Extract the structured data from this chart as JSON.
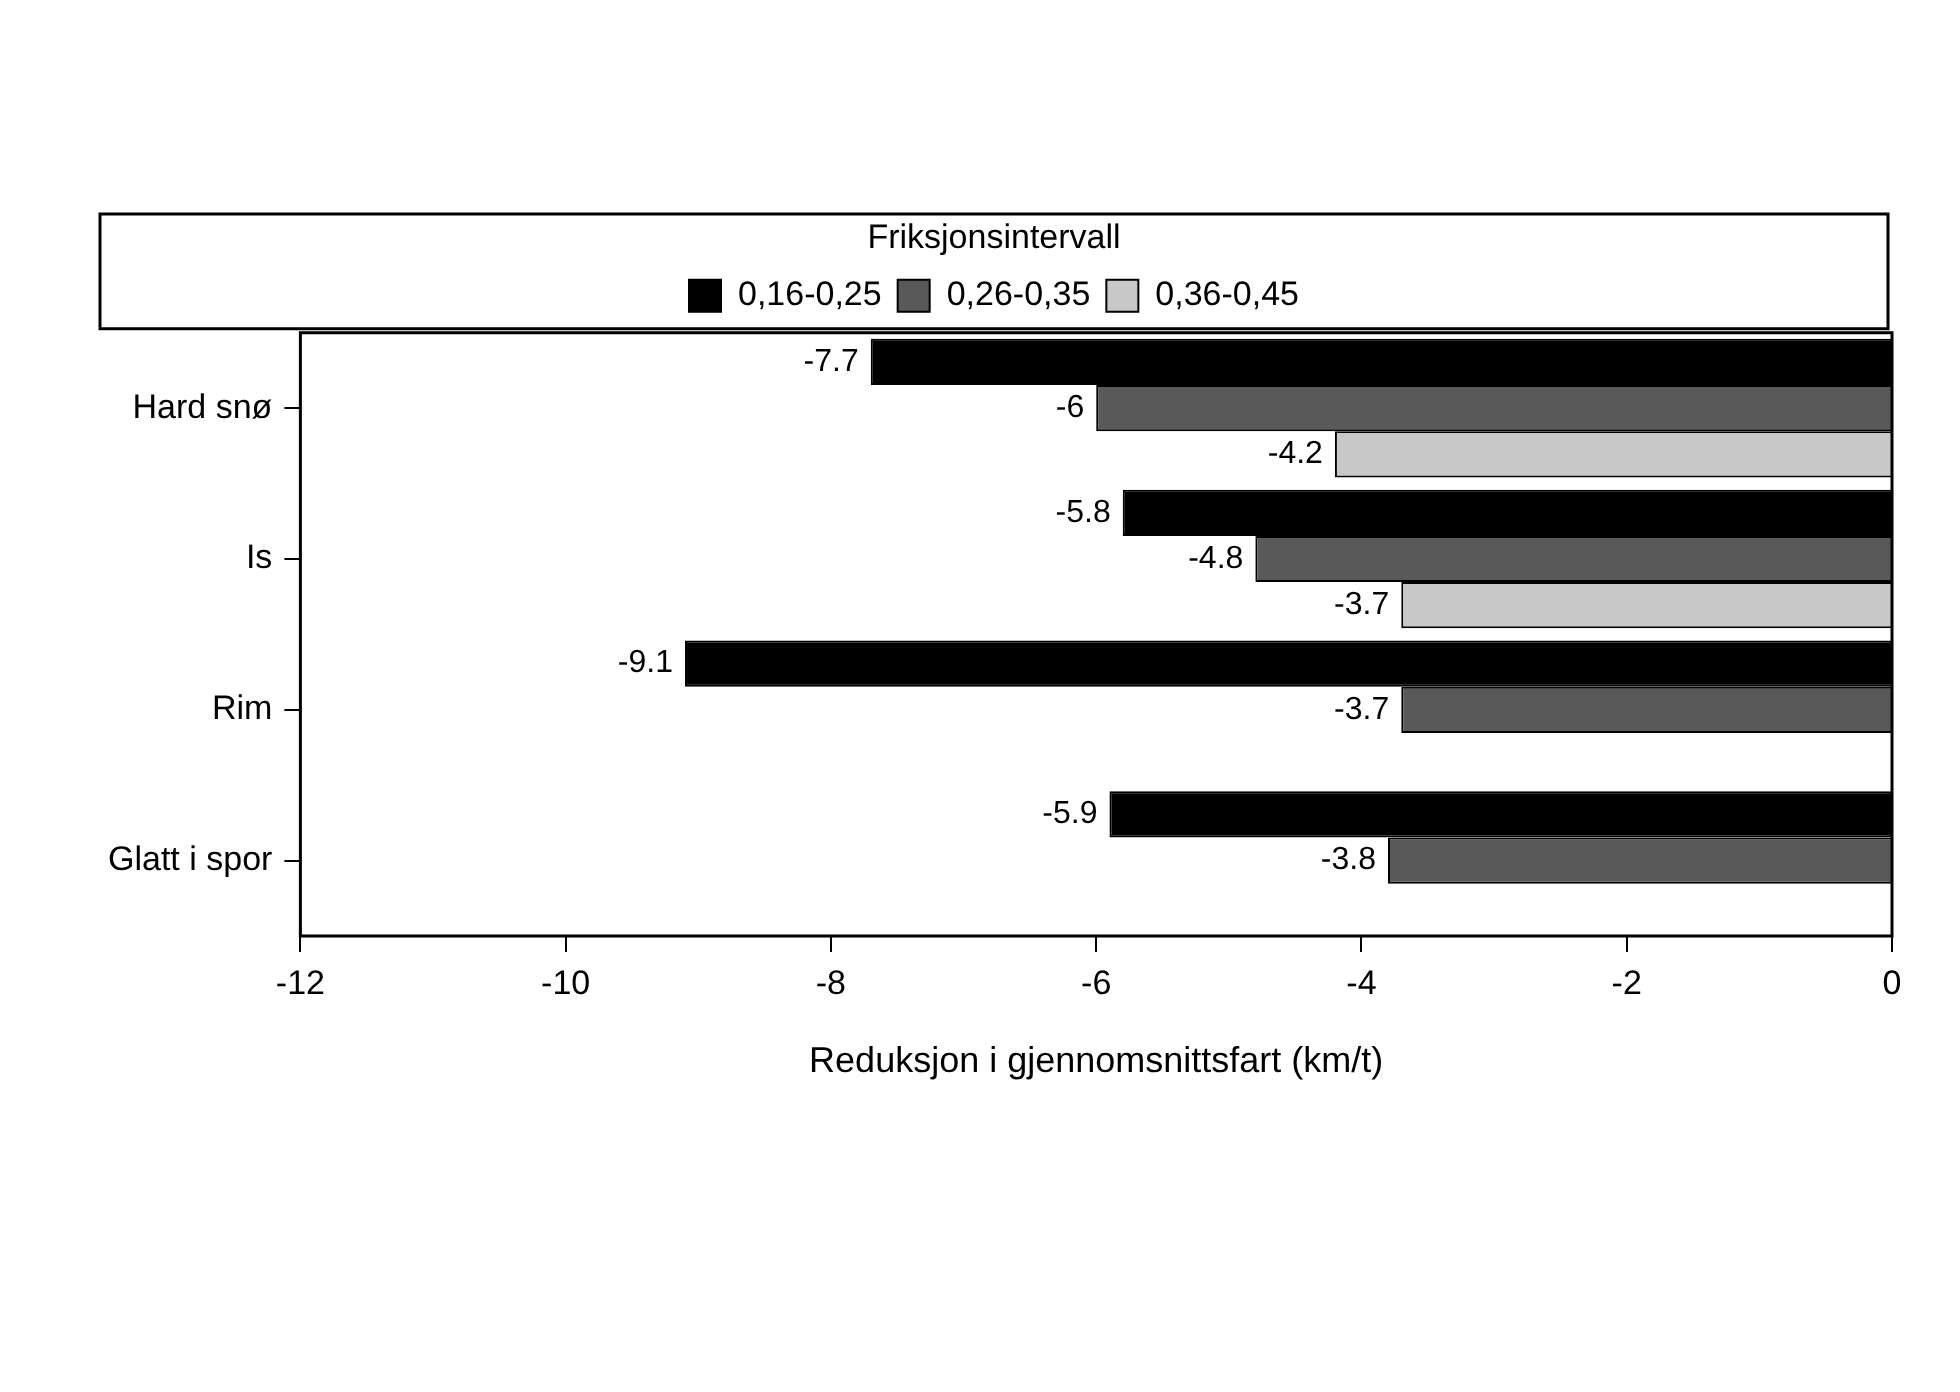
{
  "chart_data": {
    "type": "bar",
    "orientation": "horizontal",
    "xlabel": "Reduksjon i gjennomsnittsfart (km/t)",
    "legend_title": "Friksjonsintervall",
    "legend": "top",
    "categories": [
      "Hard snø",
      "Is",
      "Rim",
      "Glatt i spor"
    ],
    "series": [
      {
        "name": "0,16-0,25",
        "color": "#000000",
        "values": [
          -7.7,
          -5.8,
          -9.1,
          -5.9
        ]
      },
      {
        "name": "0,26-0,35",
        "color": "#595959",
        "values": [
          -6,
          -4.8,
          -3.7,
          -3.8
        ]
      },
      {
        "name": "0,36-0,45",
        "color": "#c8c8c8",
        "values": [
          -4.2,
          -3.7,
          null,
          null
        ]
      }
    ],
    "xlim": [
      -12,
      0
    ],
    "xticks": [
      -12,
      -10,
      -8,
      -6,
      -4,
      -2,
      0
    ],
    "grid": false,
    "data_labels": true
  }
}
